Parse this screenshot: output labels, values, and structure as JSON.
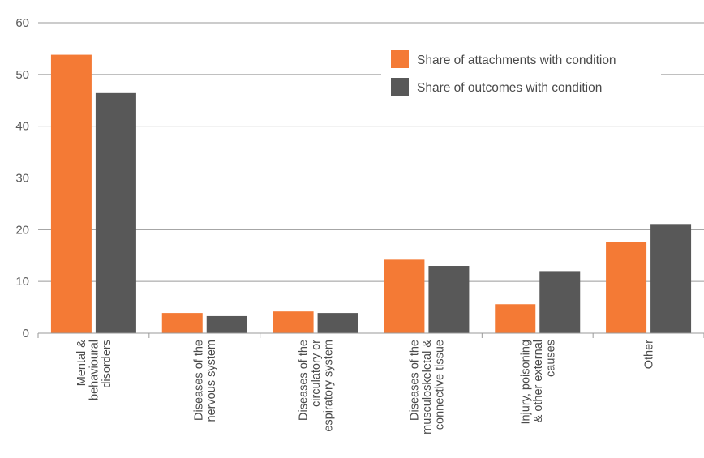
{
  "chart_data": {
    "type": "bar",
    "categories": [
      [
        "Mental &",
        "behavioural",
        "disorders"
      ],
      [
        "Diseases of the",
        "nervous system"
      ],
      [
        "Diseases of the",
        "circulatory or",
        "espiratory system"
      ],
      [
        "Diseases of the",
        "musculoskeletal &",
        "connective tissue"
      ],
      [
        "Injury, poisoning",
        "& other external",
        "causes"
      ],
      [
        "Other"
      ]
    ],
    "series": [
      {
        "name": "Share of attachments with condition",
        "color": "#f47a35",
        "values": [
          53.8,
          3.9,
          4.2,
          14.2,
          5.6,
          17.7
        ]
      },
      {
        "name": "Share of outcomes with condition",
        "color": "#585858",
        "values": [
          46.4,
          3.3,
          3.9,
          13.0,
          12.0,
          21.1
        ]
      }
    ],
    "ylim": [
      0,
      60
    ],
    "yticks": [
      0,
      10,
      20,
      30,
      40,
      50,
      60
    ],
    "grid": true,
    "legend_position": "top-right",
    "title": "",
    "xlabel": "",
    "ylabel": ""
  }
}
